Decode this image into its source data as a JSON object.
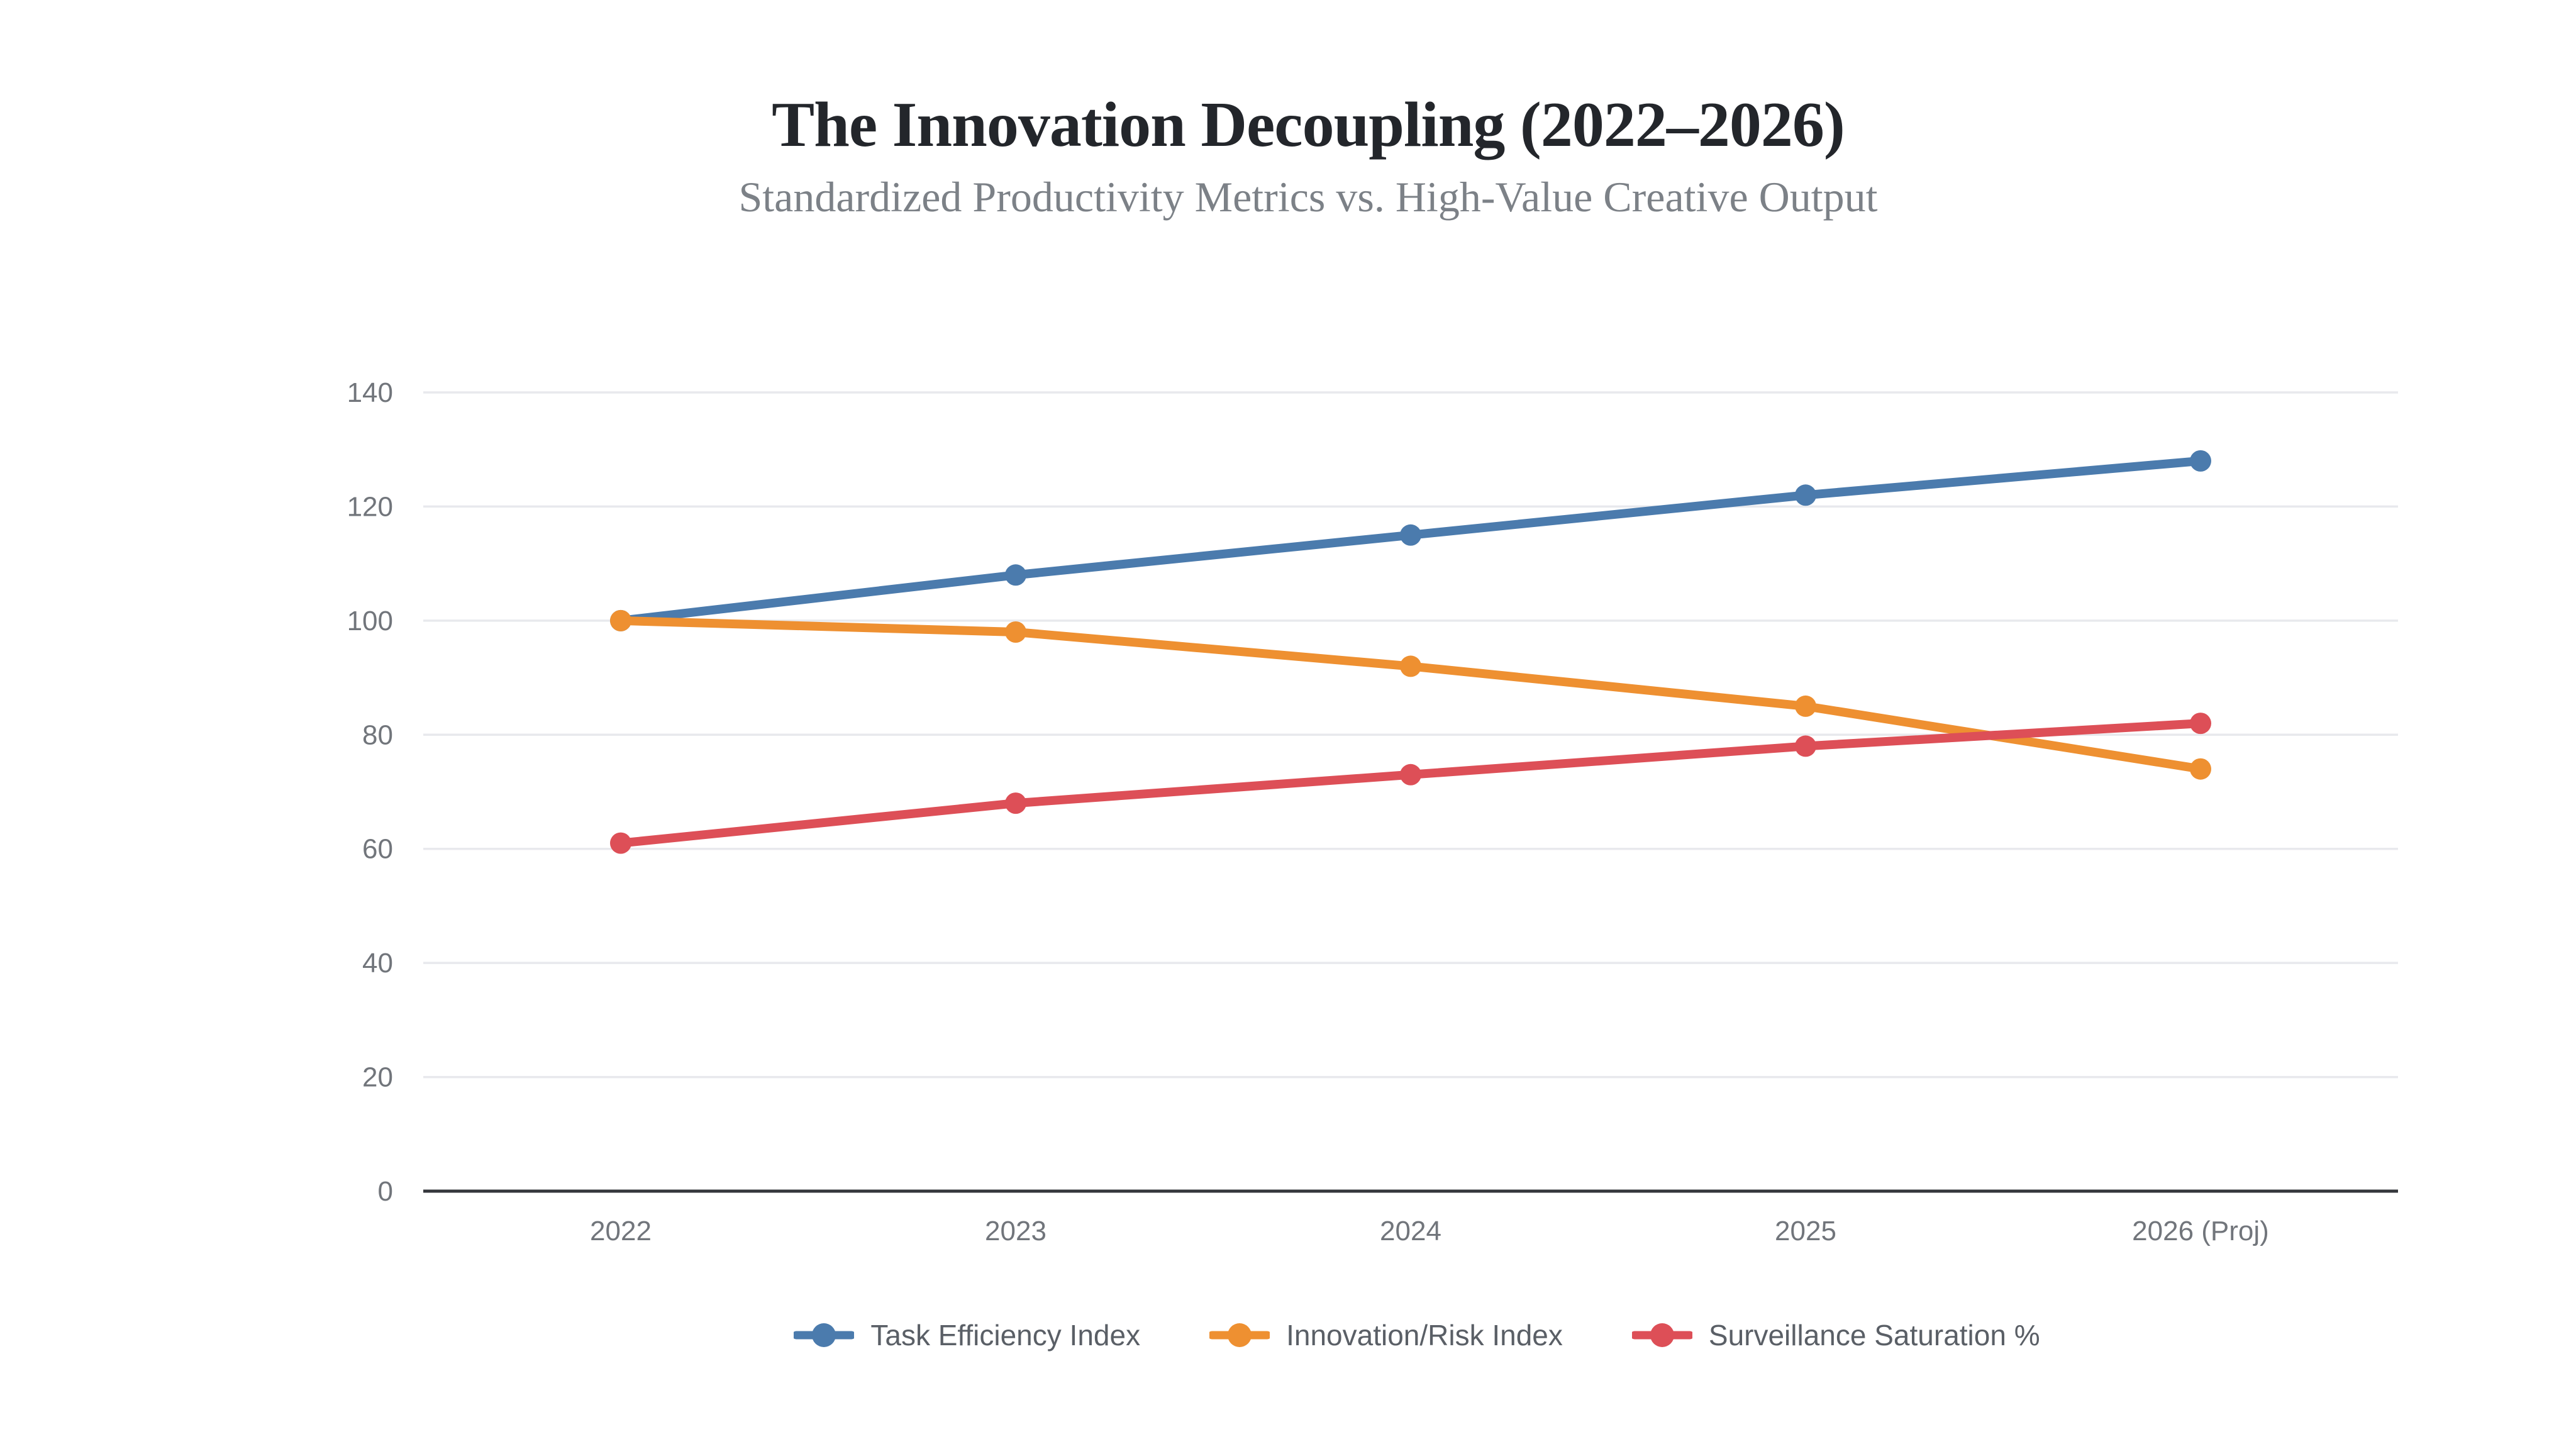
{
  "colors": {
    "background": "#ffffff",
    "grid": "#e8e9ed",
    "axis": "#35373c",
    "tick_text": "#71757b",
    "title_text": "#23262b",
    "subtitle_text": "#7c8187",
    "legend_text": "#5a5f66"
  },
  "chart_data": {
    "type": "line",
    "title": "The Innovation Decoupling (2022–2026)",
    "subtitle": "Standardized Productivity Metrics vs. High-Value Creative Output",
    "categories": [
      "2022",
      "2023",
      "2024",
      "2025",
      "2026 (Proj)"
    ],
    "series": [
      {
        "name": "Task Efficiency Index",
        "color": "#4b7bad",
        "values": [
          100,
          108,
          115,
          122,
          128
        ]
      },
      {
        "name": "Innovation/Risk Index",
        "color": "#ee9031",
        "values": [
          100,
          98,
          92,
          85,
          74
        ]
      },
      {
        "name": "Surveillance Saturation %",
        "color": "#dd4f57",
        "values": [
          61,
          68,
          73,
          78,
          82
        ]
      }
    ],
    "ylim": [
      0,
      140
    ],
    "yticks": [
      0,
      20,
      40,
      60,
      80,
      100,
      120,
      140
    ],
    "grid": true,
    "legend_position": "bottom",
    "point_style": "filled-circle"
  }
}
